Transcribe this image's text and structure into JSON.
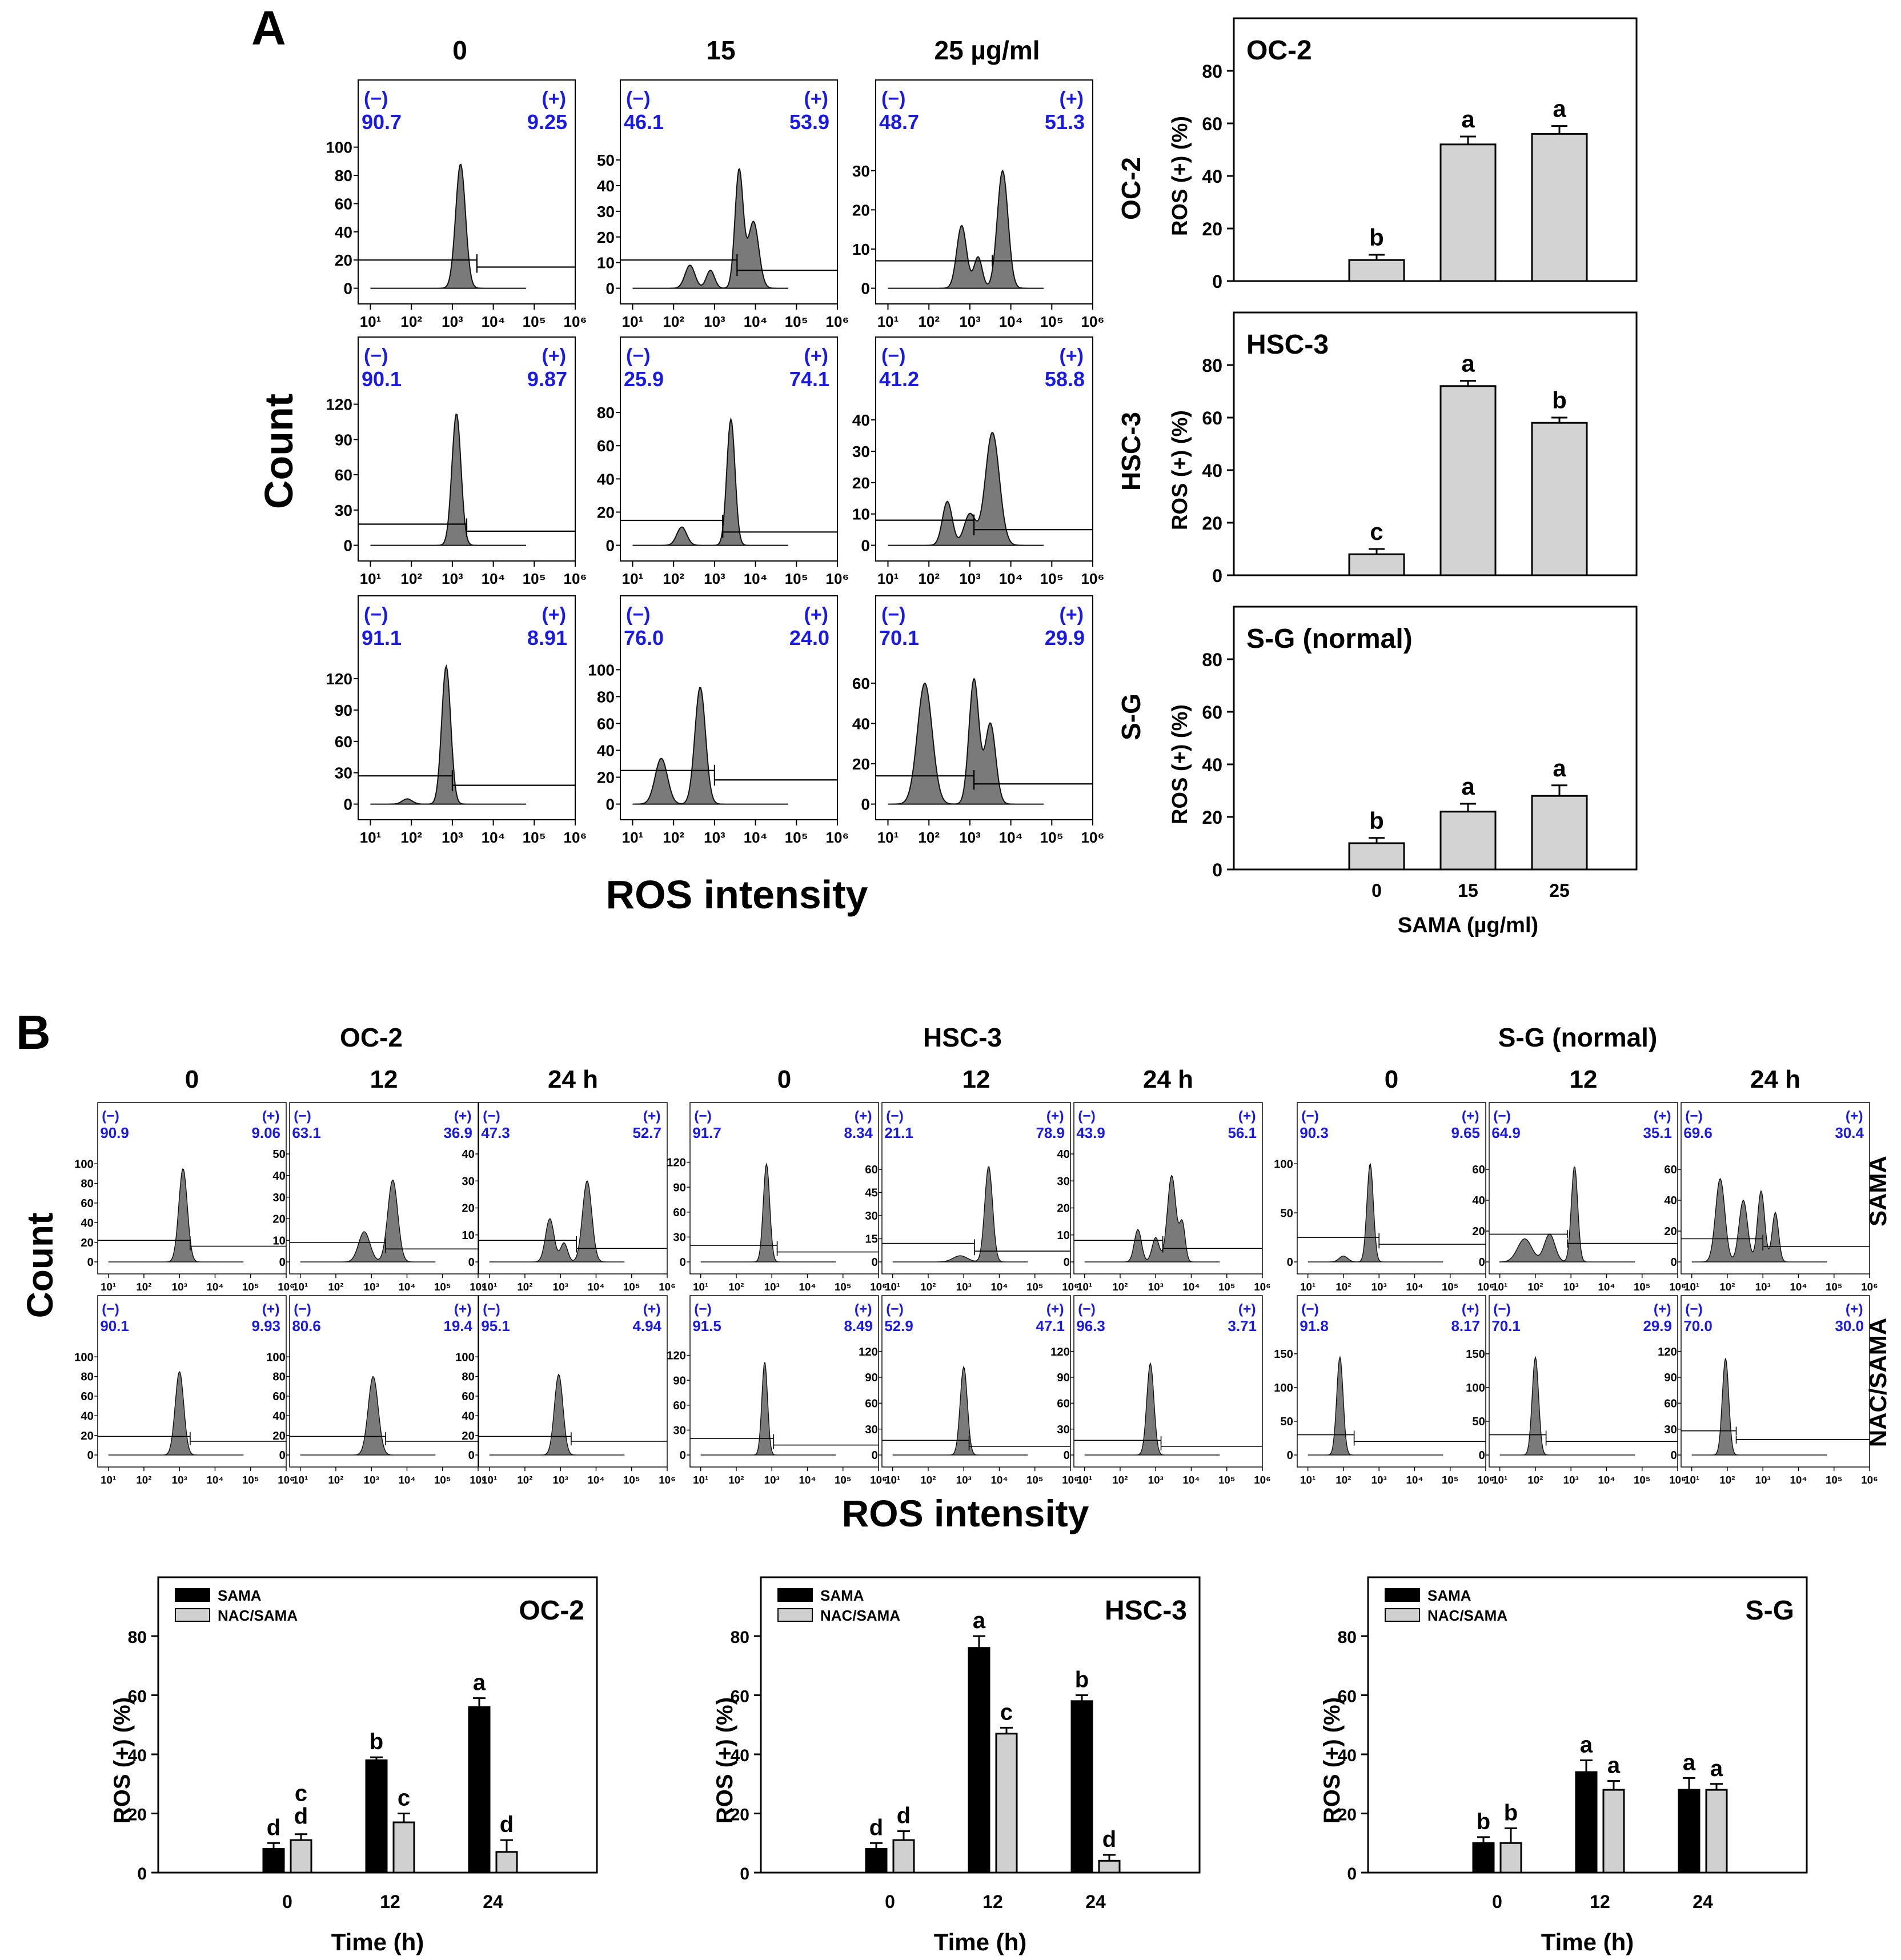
{
  "panel_A": {
    "letter": "A",
    "col_headers": [
      "0",
      "15",
      "25 µg/ml"
    ],
    "row_labels": [
      "OC-2",
      "HSC-3",
      "S-G"
    ],
    "y_axis_label": "Count",
    "x_axis_label": "ROS intensity",
    "x_tick_labels": [
      "10¹",
      "10²",
      "10³",
      "10⁴",
      "10⁵",
      "10⁶"
    ],
    "neg_label": "(−)",
    "pos_label": "(+)",
    "histograms": [
      {
        "row": 0,
        "col": 0,
        "neg": "90.7",
        "pos": "9.25",
        "ymax": 100,
        "yticks": [
          0,
          20,
          40,
          60,
          80,
          100
        ],
        "gate_y_neg": 20,
        "gate_y_pos": 15,
        "gate_split": 3.6,
        "peaks": [
          [
            3.2,
            0.12,
            88
          ]
        ]
      },
      {
        "row": 0,
        "col": 1,
        "neg": "46.1",
        "pos": "53.9",
        "ymax": 55,
        "yticks": [
          0,
          10,
          20,
          30,
          40,
          50
        ],
        "gate_y_neg": 11,
        "gate_y_pos": 7,
        "gate_split": 3.55,
        "peaks": [
          [
            2.4,
            0.12,
            9
          ],
          [
            2.9,
            0.1,
            7
          ],
          [
            3.6,
            0.1,
            46
          ],
          [
            3.95,
            0.13,
            26
          ]
        ]
      },
      {
        "row": 0,
        "col": 2,
        "neg": "48.7",
        "pos": "51.3",
        "ymax": 36,
        "yticks": [
          0,
          10,
          20,
          30
        ],
        "gate_y_neg": 7,
        "gate_y_pos": 7,
        "gate_split": 3.55,
        "peaks": [
          [
            2.8,
            0.12,
            16
          ],
          [
            3.2,
            0.1,
            8
          ],
          [
            3.8,
            0.13,
            30
          ]
        ]
      },
      {
        "row": 1,
        "col": 0,
        "neg": "90.1",
        "pos": "9.87",
        "ymax": 120,
        "yticks": [
          0,
          30,
          60,
          90,
          120
        ],
        "gate_y_neg": 18,
        "gate_y_pos": 12,
        "gate_split": 3.35,
        "peaks": [
          [
            3.1,
            0.11,
            112
          ]
        ]
      },
      {
        "row": 1,
        "col": 1,
        "neg": "25.9",
        "pos": "74.1",
        "ymax": 85,
        "yticks": [
          0,
          20,
          40,
          60,
          80
        ],
        "gate_y_neg": 15,
        "gate_y_pos": 8,
        "gate_split": 3.2,
        "peaks": [
          [
            2.2,
            0.12,
            11
          ],
          [
            3.4,
            0.1,
            76
          ]
        ]
      },
      {
        "row": 1,
        "col": 2,
        "neg": "41.2",
        "pos": "58.8",
        "ymax": 45,
        "yticks": [
          0,
          10,
          20,
          30,
          40
        ],
        "gate_y_neg": 8,
        "gate_y_pos": 5,
        "gate_split": 3.1,
        "peaks": [
          [
            2.45,
            0.12,
            14
          ],
          [
            3.0,
            0.14,
            10
          ],
          [
            3.55,
            0.17,
            36
          ]
        ]
      },
      {
        "row": 2,
        "col": 0,
        "neg": "91.1",
        "pos": "8.91",
        "ymax": 135,
        "yticks": [
          0,
          30,
          60,
          90,
          120
        ],
        "gate_y_neg": 27,
        "gate_y_pos": 18,
        "gate_split": 3.0,
        "peaks": [
          [
            1.9,
            0.12,
            5
          ],
          [
            2.85,
            0.11,
            132
          ]
        ]
      },
      {
        "row": 2,
        "col": 1,
        "neg": "76.0",
        "pos": "24.0",
        "ymax": 105,
        "yticks": [
          0,
          20,
          40,
          60,
          80,
          100
        ],
        "gate_y_neg": 25,
        "gate_y_pos": 18,
        "gate_split": 3.0,
        "peaks": [
          [
            1.7,
            0.15,
            34
          ],
          [
            2.65,
            0.13,
            87
          ]
        ]
      },
      {
        "row": 2,
        "col": 2,
        "neg": "70.1",
        "pos": "29.9",
        "ymax": 70,
        "yticks": [
          0,
          20,
          40,
          60
        ],
        "gate_y_neg": 14,
        "gate_y_pos": 10,
        "gate_split": 3.1,
        "peaks": [
          [
            1.9,
            0.18,
            60
          ],
          [
            3.1,
            0.12,
            62
          ],
          [
            3.5,
            0.13,
            40
          ]
        ]
      }
    ]
  },
  "panel_A_bars": {
    "x_title": "SAMA (µg/ml)",
    "y_title": "ROS (+) (%)",
    "categories": [
      "0",
      "15",
      "25"
    ],
    "ylim": [
      0,
      80
    ],
    "yticks": [
      0,
      20,
      40,
      60,
      80
    ],
    "charts": [
      {
        "title": "OC-2",
        "values": [
          8,
          52,
          56
        ],
        "errors": [
          2,
          3,
          3
        ],
        "letters": [
          "b",
          "a",
          "a"
        ]
      },
      {
        "title": "HSC-3",
        "values": [
          8,
          72,
          58
        ],
        "errors": [
          2,
          2,
          2
        ],
        "letters": [
          "c",
          "a",
          "b"
        ]
      },
      {
        "title": "S-G (normal)",
        "values": [
          10,
          22,
          28
        ],
        "errors": [
          2,
          3,
          4
        ],
        "letters": [
          "b",
          "a",
          "a"
        ]
      }
    ]
  },
  "panel_B": {
    "letter": "B",
    "groups": [
      "OC-2",
      "HSC-3",
      "S-G (normal)"
    ],
    "time_headers": [
      "0",
      "12",
      "24 h"
    ],
    "row_labels": [
      "SAMA",
      "NAC/SAMA"
    ],
    "y_axis_label": "Count",
    "x_axis_label": "ROS intensity",
    "x_tick_labels": [
      "10¹",
      "10²",
      "10³",
      "10⁴",
      "10⁵",
      "10⁶"
    ],
    "neg_label": "(−)",
    "pos_label": "(+)",
    "histograms": [
      {
        "group": 0,
        "row": 0,
        "col": 0,
        "neg": "90.9",
        "pos": "9.06",
        "ymax": 110,
        "yticks": [
          0,
          20,
          40,
          60,
          80,
          100
        ],
        "gate_y_neg": 22,
        "gate_y_pos": 16,
        "gate_split": 3.3,
        "peaks": [
          [
            3.1,
            0.12,
            95
          ]
        ]
      },
      {
        "group": 0,
        "row": 0,
        "col": 1,
        "neg": "63.1",
        "pos": "36.9",
        "ymax": 50,
        "yticks": [
          0,
          10,
          20,
          30,
          40,
          50
        ],
        "gate_y_neg": 9,
        "gate_y_pos": 6,
        "gate_split": 3.4,
        "peaks": [
          [
            2.8,
            0.16,
            14
          ],
          [
            3.6,
            0.14,
            38
          ]
        ]
      },
      {
        "group": 0,
        "row": 0,
        "col": 2,
        "neg": "47.3",
        "pos": "52.7",
        "ymax": 40,
        "yticks": [
          0,
          10,
          20,
          30,
          40
        ],
        "gate_y_neg": 8,
        "gate_y_pos": 5,
        "gate_split": 3.45,
        "peaks": [
          [
            2.7,
            0.12,
            16
          ],
          [
            3.1,
            0.1,
            7
          ],
          [
            3.75,
            0.13,
            30
          ]
        ]
      },
      {
        "group": 0,
        "row": 1,
        "col": 0,
        "neg": "90.1",
        "pos": "9.93",
        "ymax": 110,
        "yticks": [
          0,
          20,
          40,
          60,
          80,
          100
        ],
        "gate_y_neg": 19,
        "gate_y_pos": 14,
        "gate_split": 3.3,
        "peaks": [
          [
            3.0,
            0.12,
            85
          ]
        ]
      },
      {
        "group": 0,
        "row": 1,
        "col": 1,
        "neg": "80.6",
        "pos": "19.4",
        "ymax": 110,
        "yticks": [
          0,
          20,
          40,
          60,
          80,
          100
        ],
        "gate_y_neg": 19,
        "gate_y_pos": 14,
        "gate_split": 3.4,
        "peaks": [
          [
            3.05,
            0.14,
            80
          ]
        ]
      },
      {
        "group": 0,
        "row": 1,
        "col": 2,
        "neg": "95.1",
        "pos": "4.94",
        "ymax": 110,
        "yticks": [
          0,
          20,
          40,
          60,
          80,
          100
        ],
        "gate_y_neg": 19,
        "gate_y_pos": 14,
        "gate_split": 3.3,
        "peaks": [
          [
            2.95,
            0.12,
            82
          ]
        ]
      },
      {
        "group": 1,
        "row": 0,
        "col": 0,
        "neg": "91.7",
        "pos": "8.34",
        "ymax": 130,
        "yticks": [
          0,
          30,
          60,
          90,
          120
        ],
        "gate_y_neg": 20,
        "gate_y_pos": 12,
        "gate_split": 3.15,
        "peaks": [
          [
            2.85,
            0.09,
            118
          ]
        ]
      },
      {
        "group": 1,
        "row": 0,
        "col": 1,
        "neg": "21.1",
        "pos": "78.9",
        "ymax": 70,
        "yticks": [
          0,
          15,
          30,
          45,
          60
        ],
        "gate_y_neg": 12,
        "gate_y_pos": 7,
        "gate_split": 3.3,
        "peaks": [
          [
            2.9,
            0.2,
            4
          ],
          [
            3.7,
            0.11,
            62
          ]
        ]
      },
      {
        "group": 1,
        "row": 0,
        "col": 2,
        "neg": "43.9",
        "pos": "56.1",
        "ymax": 40,
        "yticks": [
          0,
          10,
          20,
          30,
          40
        ],
        "gate_y_neg": 8,
        "gate_y_pos": 5,
        "gate_split": 3.2,
        "peaks": [
          [
            2.5,
            0.1,
            12
          ],
          [
            3.0,
            0.1,
            9
          ],
          [
            3.45,
            0.12,
            32
          ],
          [
            3.75,
            0.08,
            14
          ]
        ]
      },
      {
        "group": 1,
        "row": 1,
        "col": 0,
        "neg": "91.5",
        "pos": "8.49",
        "ymax": 130,
        "yticks": [
          0,
          30,
          60,
          90,
          120
        ],
        "gate_y_neg": 20,
        "gate_y_pos": 12,
        "gate_split": 3.05,
        "peaks": [
          [
            2.8,
            0.08,
            112
          ]
        ]
      },
      {
        "group": 1,
        "row": 1,
        "col": 1,
        "neg": "52.9",
        "pos": "47.1",
        "ymax": 125,
        "yticks": [
          0,
          30,
          60,
          90,
          120
        ],
        "gate_y_neg": 17,
        "gate_y_pos": 10,
        "gate_split": 3.15,
        "peaks": [
          [
            3.0,
            0.1,
            102
          ]
        ]
      },
      {
        "group": 1,
        "row": 1,
        "col": 2,
        "neg": "96.3",
        "pos": "3.71",
        "ymax": 125,
        "yticks": [
          0,
          30,
          60,
          90,
          120
        ],
        "gate_y_neg": 17,
        "gate_y_pos": 10,
        "gate_split": 3.15,
        "peaks": [
          [
            2.85,
            0.1,
            106
          ]
        ]
      },
      {
        "group": 2,
        "row": 0,
        "col": 0,
        "neg": "90.3",
        "pos": "9.65",
        "ymax": 110,
        "yticks": [
          0,
          50,
          100
        ],
        "gate_y_neg": 25,
        "gate_y_pos": 18,
        "gate_split": 3.0,
        "peaks": [
          [
            2.0,
            0.12,
            6
          ],
          [
            2.75,
            0.09,
            100
          ]
        ]
      },
      {
        "group": 2,
        "row": 0,
        "col": 1,
        "neg": "64.9",
        "pos": "35.1",
        "ymax": 70,
        "yticks": [
          0,
          20,
          40,
          60
        ],
        "gate_y_neg": 18,
        "gate_y_pos": 12,
        "gate_split": 2.9,
        "peaks": [
          [
            1.7,
            0.2,
            15
          ],
          [
            2.4,
            0.15,
            18
          ],
          [
            3.1,
            0.09,
            62
          ]
        ]
      },
      {
        "group": 2,
        "row": 0,
        "col": 2,
        "neg": "69.6",
        "pos": "30.4",
        "ymax": 70,
        "yticks": [
          0,
          20,
          40,
          60
        ],
        "gate_y_neg": 15,
        "gate_y_pos": 10,
        "gate_split": 3.0,
        "peaks": [
          [
            1.8,
            0.13,
            54
          ],
          [
            2.45,
            0.12,
            40
          ],
          [
            2.95,
            0.1,
            46
          ],
          [
            3.35,
            0.09,
            32
          ]
        ]
      },
      {
        "group": 2,
        "row": 1,
        "col": 0,
        "neg": "91.8",
        "pos": "8.17",
        "ymax": 160,
        "yticks": [
          0,
          50,
          100,
          150
        ],
        "gate_y_neg": 30,
        "gate_y_pos": 20,
        "gate_split": 2.3,
        "peaks": [
          [
            1.9,
            0.09,
            145
          ]
        ]
      },
      {
        "group": 2,
        "row": 1,
        "col": 1,
        "neg": "70.1",
        "pos": "29.9",
        "ymax": 160,
        "yticks": [
          0,
          50,
          100,
          150
        ],
        "gate_y_neg": 30,
        "gate_y_pos": 20,
        "gate_split": 2.3,
        "peaks": [
          [
            2.0,
            0.09,
            145
          ]
        ]
      },
      {
        "group": 2,
        "row": 1,
        "col": 2,
        "neg": "70.0",
        "pos": "30.0",
        "ymax": 125,
        "yticks": [
          0,
          30,
          60,
          90,
          120
        ],
        "gate_y_neg": 28,
        "gate_y_pos": 18,
        "gate_split": 2.25,
        "peaks": [
          [
            1.95,
            0.09,
            112
          ]
        ]
      }
    ]
  },
  "panel_B_bars": {
    "x_title": "Time (h)",
    "y_title": "ROS (+) (%)",
    "categories": [
      "0",
      "12",
      "24"
    ],
    "legend": [
      "SAMA",
      "NAC/SAMA"
    ],
    "legend_position": "top-left",
    "ylim": [
      0,
      80
    ],
    "yticks": [
      0,
      20,
      40,
      60,
      80
    ],
    "series_colors": [
      "#000000",
      "#d0d0d0"
    ],
    "charts": [
      {
        "title": "OC-2",
        "sama": [
          8,
          38,
          56
        ],
        "sama_err": [
          2,
          1,
          3
        ],
        "sama_letters": [
          "d",
          "b",
          "a"
        ],
        "nac": [
          11,
          17,
          7
        ],
        "nac_err": [
          2,
          3,
          4
        ],
        "nac_letters": [
          "c d",
          "c",
          "d"
        ]
      },
      {
        "title": "HSC-3",
        "sama": [
          8,
          76,
          58
        ],
        "sama_err": [
          2,
          4,
          2
        ],
        "sama_letters": [
          "d",
          "a",
          "b"
        ],
        "nac": [
          11,
          47,
          4
        ],
        "nac_err": [
          3,
          2,
          2
        ],
        "nac_letters": [
          "d",
          "c",
          "d"
        ]
      },
      {
        "title": "S-G",
        "sama": [
          10,
          34,
          28
        ],
        "sama_err": [
          2,
          4,
          4
        ],
        "sama_letters": [
          "b",
          "a",
          "a"
        ],
        "nac": [
          10,
          28,
          28
        ],
        "nac_err": [
          5,
          3,
          2
        ],
        "nac_letters": [
          "b",
          "a",
          "a"
        ]
      }
    ]
  },
  "chart_data": [
    {
      "type": "bar",
      "title": "OC-2",
      "xlabel": "SAMA (µg/ml)",
      "ylabel": "ROS (+) (%)",
      "categories": [
        "0",
        "15",
        "25"
      ],
      "values": [
        8,
        52,
        56
      ],
      "ylim": [
        0,
        80
      ]
    },
    {
      "type": "bar",
      "title": "HSC-3",
      "xlabel": "SAMA (µg/ml)",
      "ylabel": "ROS (+) (%)",
      "categories": [
        "0",
        "15",
        "25"
      ],
      "values": [
        8,
        72,
        58
      ],
      "ylim": [
        0,
        80
      ]
    },
    {
      "type": "bar",
      "title": "S-G (normal)",
      "xlabel": "SAMA (µg/ml)",
      "ylabel": "ROS (+) (%)",
      "categories": [
        "0",
        "15",
        "25"
      ],
      "values": [
        10,
        22,
        28
      ],
      "ylim": [
        0,
        80
      ]
    },
    {
      "type": "bar",
      "title": "OC-2",
      "xlabel": "Time (h)",
      "ylabel": "ROS (+) (%)",
      "categories": [
        "0",
        "12",
        "24"
      ],
      "series": [
        {
          "name": "SAMA",
          "values": [
            8,
            38,
            56
          ]
        },
        {
          "name": "NAC/SAMA",
          "values": [
            11,
            17,
            7
          ]
        }
      ],
      "ylim": [
        0,
        80
      ]
    },
    {
      "type": "bar",
      "title": "HSC-3",
      "xlabel": "Time (h)",
      "ylabel": "ROS (+) (%)",
      "categories": [
        "0",
        "12",
        "24"
      ],
      "series": [
        {
          "name": "SAMA",
          "values": [
            8,
            76,
            58
          ]
        },
        {
          "name": "NAC/SAMA",
          "values": [
            11,
            47,
            4
          ]
        }
      ],
      "ylim": [
        0,
        80
      ]
    },
    {
      "type": "bar",
      "title": "S-G",
      "xlabel": "Time (h)",
      "ylabel": "ROS (+) (%)",
      "categories": [
        "0",
        "12",
        "24"
      ],
      "series": [
        {
          "name": "SAMA",
          "values": [
            10,
            34,
            28
          ]
        },
        {
          "name": "NAC/SAMA",
          "values": [
            10,
            28,
            28
          ]
        }
      ],
      "ylim": [
        0,
        80
      ]
    }
  ]
}
